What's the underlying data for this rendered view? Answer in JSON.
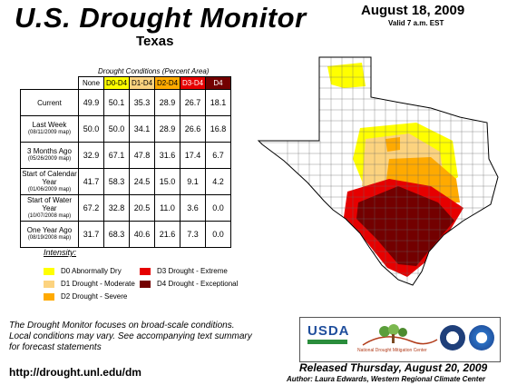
{
  "header": {
    "title": "U.S. Drought Monitor",
    "state": "Texas",
    "date": "August 18, 2009",
    "valid": "Valid 7 a.m. EST"
  },
  "table": {
    "caption": "Drought Conditions (Percent Area)",
    "columns": [
      {
        "label": "None",
        "color": "#ffffff"
      },
      {
        "label": "D0-D4",
        "color": "#ffff00"
      },
      {
        "label": "D1-D4",
        "color": "#fcd37f"
      },
      {
        "label": "D2-D4",
        "color": "#ffaa00"
      },
      {
        "label": "D3-D4",
        "color": "#e60000"
      },
      {
        "label": "D4",
        "color": "#730000"
      }
    ],
    "rows": [
      {
        "label": "Current",
        "sub": "",
        "values": [
          "49.9",
          "50.1",
          "35.3",
          "28.9",
          "26.7",
          "18.1"
        ]
      },
      {
        "label": "Last Week",
        "sub": "(08/11/2009 map)",
        "values": [
          "50.0",
          "50.0",
          "34.1",
          "28.9",
          "26.6",
          "16.8"
        ]
      },
      {
        "label": "3 Months Ago",
        "sub": "(05/26/2009 map)",
        "values": [
          "32.9",
          "67.1",
          "47.8",
          "31.6",
          "17.4",
          "6.7"
        ]
      },
      {
        "label": "Start of Calendar Year",
        "sub": "(01/06/2009 map)",
        "values": [
          "41.7",
          "58.3",
          "24.5",
          "15.0",
          "9.1",
          "4.2"
        ]
      },
      {
        "label": "Start of Water Year",
        "sub": "(10/07/2008 map)",
        "values": [
          "67.2",
          "32.8",
          "20.5",
          "11.0",
          "3.6",
          "0.0"
        ]
      },
      {
        "label": "One Year Ago",
        "sub": "(08/19/2008 map)",
        "values": [
          "31.7",
          "68.3",
          "40.6",
          "21.6",
          "7.3",
          "0.0"
        ]
      }
    ]
  },
  "legend": {
    "title": "Intensity:",
    "items": [
      {
        "label": "D0 Abnormally Dry",
        "color": "#ffff00"
      },
      {
        "label": "D1 Drought - Moderate",
        "color": "#fcd37f"
      },
      {
        "label": "D2 Drought - Severe",
        "color": "#ffaa00"
      },
      {
        "label": "D3 Drought - Extreme",
        "color": "#e60000"
      },
      {
        "label": "D4 Drought - Exceptional",
        "color": "#730000"
      }
    ]
  },
  "footer": {
    "note_1": "The Drought Monitor focuses on broad-scale conditions.",
    "note_2": "Local conditions may vary. See accompanying text summary",
    "note_3": "for forecast statements",
    "url": "http://drought.unl.edu/dm",
    "released": "Released Thursday, August 20, 2009",
    "author": "Author: Laura Edwards, Western Regional Climate Center"
  },
  "logos": {
    "usda": "USDA",
    "ndmc": "National Drought Mitigation Center"
  }
}
